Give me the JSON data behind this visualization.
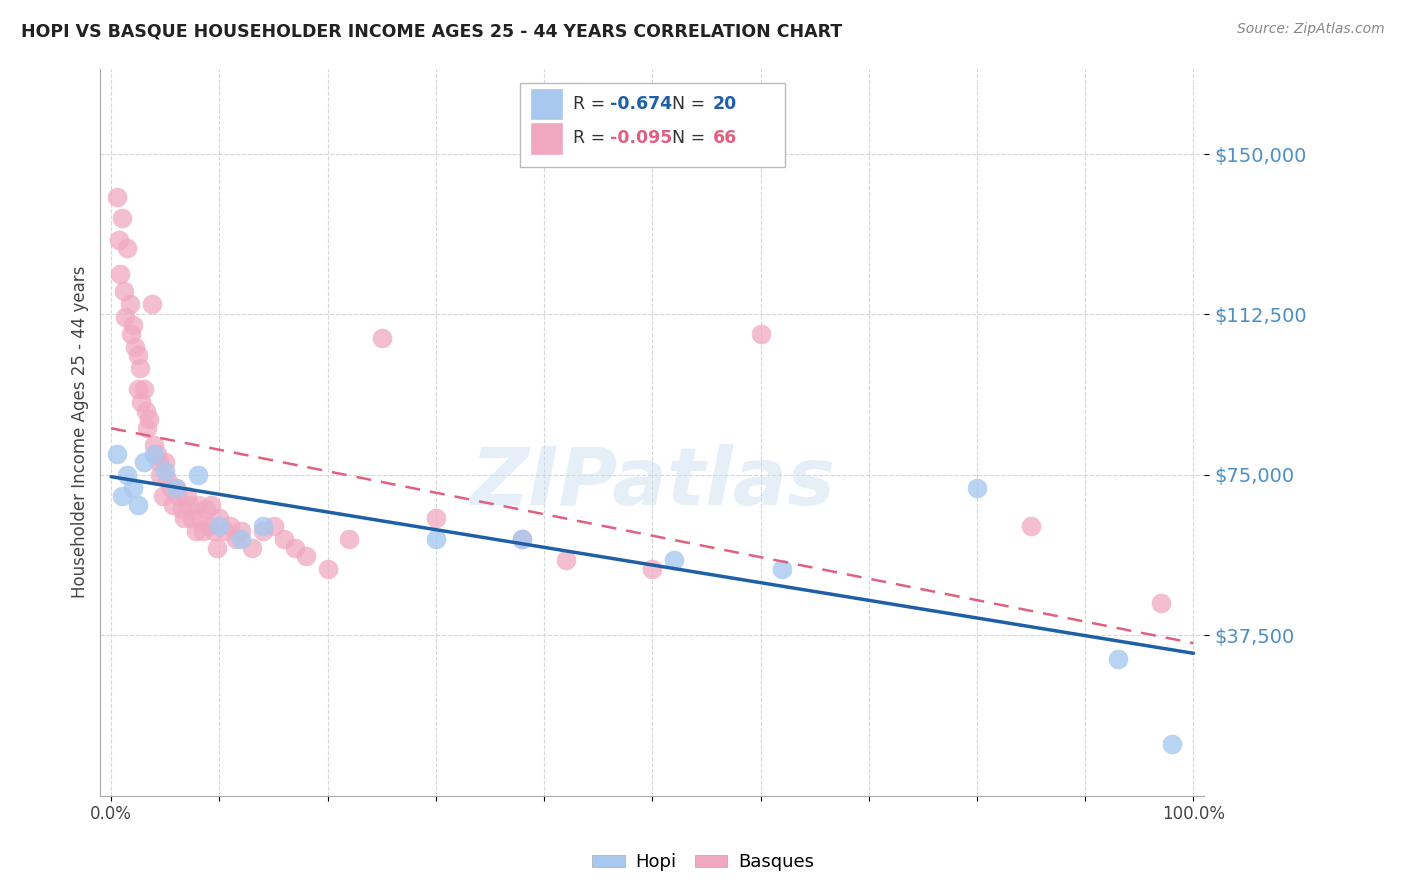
{
  "title": "HOPI VS BASQUE HOUSEHOLDER INCOME AGES 25 - 44 YEARS CORRELATION CHART",
  "source": "Source: ZipAtlas.com",
  "ylabel": "Householder Income Ages 25 - 44 years",
  "watermark": "ZIPatlas",
  "background_color": "#ffffff",
  "xlim": [
    -0.01,
    1.01
  ],
  "ylim": [
    0,
    170000
  ],
  "yticks": [
    37500,
    75000,
    112500,
    150000
  ],
  "ytick_labels": [
    "$37,500",
    "$75,000",
    "$112,500",
    "$150,000"
  ],
  "xticks": [
    0.0,
    0.1,
    0.2,
    0.3,
    0.4,
    0.5,
    0.6,
    0.7,
    0.8,
    0.9,
    1.0
  ],
  "xtick_labels": [
    "0.0%",
    "",
    "",
    "",
    "",
    "",
    "",
    "",
    "",
    "",
    "100.0%"
  ],
  "grid_color": "#cccccc",
  "hopi_color": "#a8c8f0",
  "basque_color": "#f0a8c0",
  "hopi_line_color": "#1f5fa6",
  "basque_line_color": "#e06080",
  "axis_tick_color": "#4d8fc4",
  "hopi_R": "-0.674",
  "hopi_N": "20",
  "basque_R": "-0.095",
  "basque_N": "66",
  "hopi_x": [
    0.005,
    0.01,
    0.015,
    0.02,
    0.025,
    0.03,
    0.04,
    0.05,
    0.06,
    0.08,
    0.1,
    0.12,
    0.14,
    0.3,
    0.38,
    0.52,
    0.62,
    0.8,
    0.93,
    0.98
  ],
  "hopi_y": [
    80000,
    70000,
    75000,
    72000,
    68000,
    78000,
    80000,
    76000,
    72000,
    75000,
    63000,
    60000,
    63000,
    60000,
    60000,
    55000,
    53000,
    72000,
    32000,
    12000
  ],
  "basque_x": [
    0.005,
    0.007,
    0.008,
    0.01,
    0.012,
    0.013,
    0.015,
    0.017,
    0.018,
    0.02,
    0.022,
    0.025,
    0.025,
    0.027,
    0.028,
    0.03,
    0.032,
    0.033,
    0.035,
    0.038,
    0.04,
    0.042,
    0.044,
    0.045,
    0.048,
    0.05,
    0.052,
    0.055,
    0.057,
    0.06,
    0.062,
    0.065,
    0.067,
    0.07,
    0.072,
    0.075,
    0.078,
    0.08,
    0.082,
    0.085,
    0.088,
    0.09,
    0.092,
    0.095,
    0.098,
    0.1,
    0.105,
    0.11,
    0.115,
    0.12,
    0.13,
    0.14,
    0.15,
    0.16,
    0.17,
    0.18,
    0.2,
    0.22,
    0.25,
    0.3,
    0.38,
    0.42,
    0.5,
    0.6,
    0.85,
    0.97
  ],
  "basque_y": [
    140000,
    130000,
    122000,
    135000,
    118000,
    112000,
    128000,
    115000,
    108000,
    110000,
    105000,
    103000,
    95000,
    100000,
    92000,
    95000,
    90000,
    86000,
    88000,
    115000,
    82000,
    80000,
    78000,
    75000,
    70000,
    78000,
    74000,
    72000,
    68000,
    72000,
    70000,
    67000,
    65000,
    70000,
    68000,
    65000,
    62000,
    68000,
    65000,
    62000,
    67000,
    63000,
    68000,
    62000,
    58000,
    65000,
    62000,
    63000,
    60000,
    62000,
    58000,
    62000,
    63000,
    60000,
    58000,
    56000,
    53000,
    60000,
    107000,
    65000,
    60000,
    55000,
    53000,
    108000,
    63000,
    45000
  ]
}
